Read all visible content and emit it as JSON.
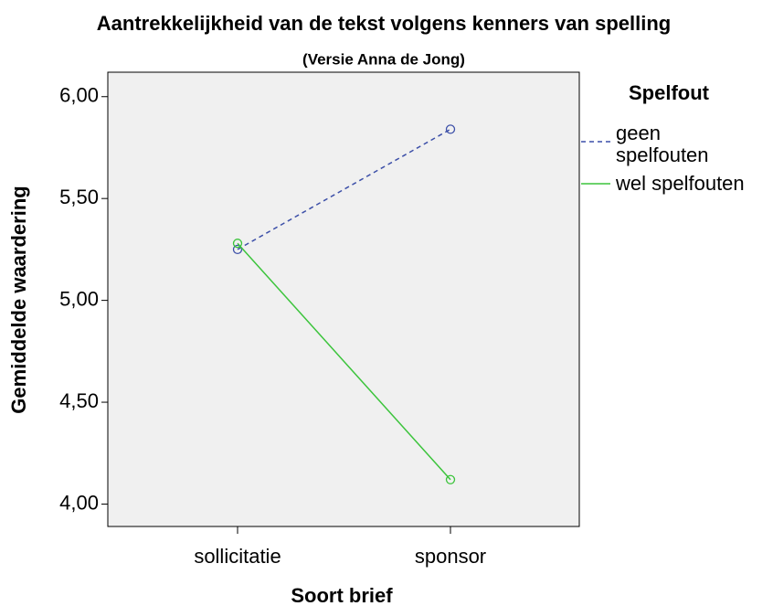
{
  "chart_data": {
    "type": "line",
    "title": "Aantrekkelijkheid van de tekst volgens kenners van spelling",
    "subtitle": "(Versie Anna de Jong)",
    "x_label": "Soort brief",
    "y_label": "Gemiddelde waardering",
    "categories": [
      "sollicitatie",
      "sponsor"
    ],
    "series": [
      {
        "name": "geen spelfouten",
        "color": "#3c4fa8",
        "dash": true,
        "values": [
          5.25,
          5.84
        ]
      },
      {
        "name": "wel spelfouten",
        "color": "#3cc43c",
        "dash": false,
        "values": [
          5.28,
          4.12
        ]
      }
    ],
    "legend_title": "Spelfout",
    "ylim": [
      3.89,
      6.12
    ],
    "yticks": [
      {
        "value": 4,
        "label": "4,00"
      },
      {
        "value": 4.5,
        "label": "4,50"
      },
      {
        "value": 5,
        "label": "5,00"
      },
      {
        "value": 5.5,
        "label": "5,50"
      },
      {
        "value": 6,
        "label": "6,00"
      }
    ],
    "grid": false
  }
}
